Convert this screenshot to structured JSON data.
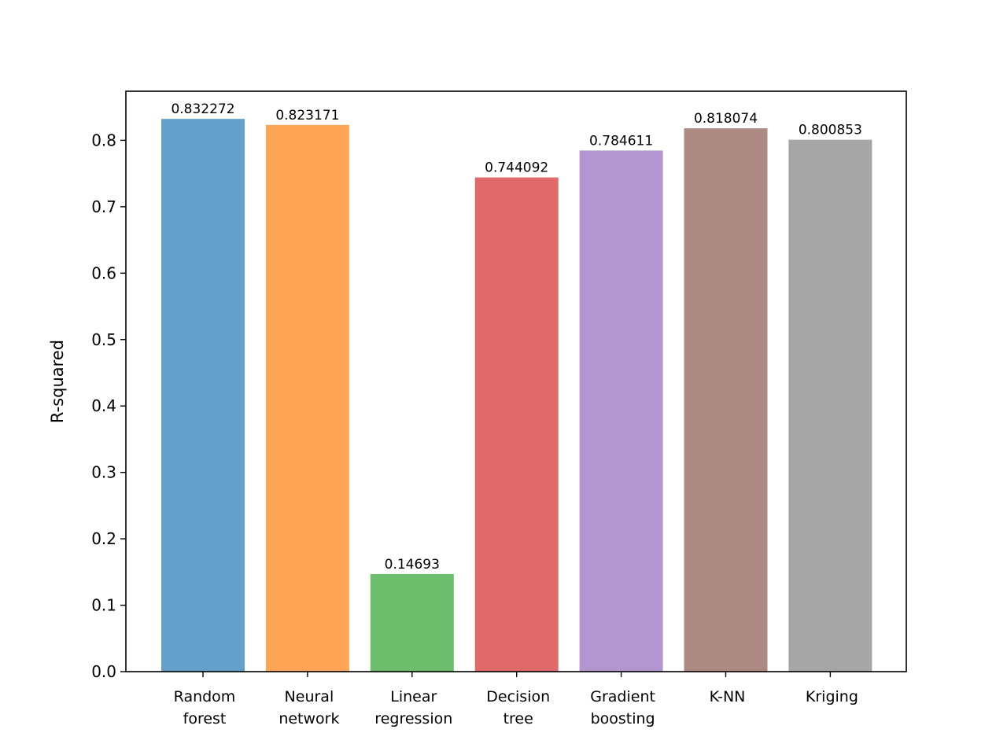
{
  "chart_data": {
    "type": "bar",
    "title": "",
    "xlabel": "",
    "ylabel": "R-squared",
    "categories": [
      [
        "Random",
        "forest"
      ],
      [
        "Neural",
        "network"
      ],
      [
        "Linear",
        "regression"
      ],
      [
        "Decision",
        "tree"
      ],
      [
        "Gradient",
        "boosting"
      ],
      [
        "K-NN"
      ],
      [
        "Kriging"
      ]
    ],
    "values": [
      0.832272,
      0.823171,
      0.14693,
      0.744092,
      0.784611,
      0.818074,
      0.800853
    ],
    "value_labels": [
      "0.832272",
      "0.823171",
      "0.14693",
      "0.744092",
      "0.784611",
      "0.818074",
      "0.800853"
    ],
    "colors": [
      "#64a0ca",
      "#ffa556",
      "#6cbd6c",
      "#e1696a",
      "#b395cf",
      "#ac8982",
      "#a6a6a6"
    ],
    "ylim": [
      0,
      0.8739
    ],
    "yticks": [
      0.0,
      0.1,
      0.2,
      0.3,
      0.4,
      0.5,
      0.6,
      0.7,
      0.8
    ],
    "ytick_labels": [
      "0.0",
      "0.1",
      "0.2",
      "0.3",
      "0.4",
      "0.5",
      "0.6",
      "0.7",
      "0.8"
    ],
    "grid": false,
    "legend": "none"
  }
}
